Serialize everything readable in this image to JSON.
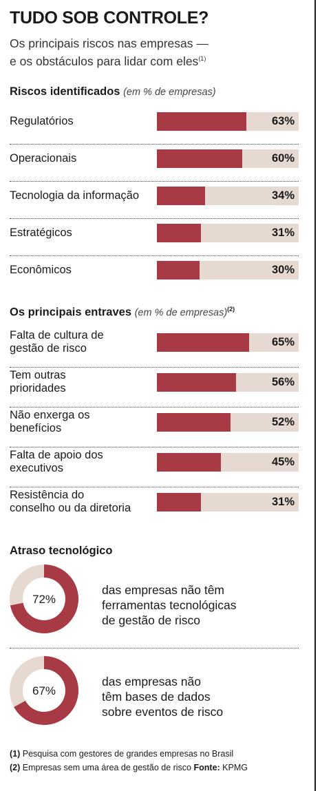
{
  "title": "TUDO SOB CONTROLE?",
  "subtitle_line1": "Os principais riscos nas empresas —",
  "subtitle_line2": "e os obstáculos para lidar com eles",
  "subtitle_sup": "(1)",
  "section1": {
    "title": "Riscos identificados",
    "note": "(em % de empresas)"
  },
  "section2": {
    "title": "Os principais entraves",
    "note": "(em % de empresas)",
    "sup": "(2)"
  },
  "section3": {
    "title": "Atraso tecnológico"
  },
  "chart_data": [
    {
      "type": "bar",
      "title": "Riscos identificados",
      "unit": "% de empresas",
      "categories": [
        "Regulatórios",
        "Operacionais",
        "Tecnologia da informação",
        "Estratégicos",
        "Econômicos"
      ],
      "values": [
        63,
        60,
        34,
        31,
        30
      ],
      "value_labels": [
        "63%",
        "60%",
        "34%",
        "31%",
        "30%"
      ],
      "xlim": [
        0,
        100
      ],
      "orientation": "horizontal"
    },
    {
      "type": "bar",
      "title": "Os principais entraves",
      "unit": "% de empresas",
      "categories": [
        [
          "Falta de cultura de",
          "gestão de risco"
        ],
        [
          "Tem outras",
          "prioridades"
        ],
        [
          "Não enxerga os",
          "benefícios"
        ],
        [
          "Falta de apoio dos",
          "executivos"
        ],
        [
          "Resistência do",
          "conselho ou da diretoria"
        ]
      ],
      "values": [
        65,
        56,
        52,
        45,
        31
      ],
      "value_labels": [
        "65%",
        "56%",
        "52%",
        "45%",
        "31%"
      ],
      "xlim": [
        0,
        100
      ],
      "orientation": "horizontal"
    },
    {
      "type": "pie",
      "title": "Atraso tecnológico",
      "items": [
        {
          "value": 72,
          "label": "72%",
          "text": [
            "das empresas não têm",
            "ferramentas tecnológicas",
            "de gestão de risco"
          ]
        },
        {
          "value": 67,
          "label": "67%",
          "text": [
            "das empresas não",
            "têm bases de dados",
            "sobre eventos de risco"
          ]
        }
      ]
    }
  ],
  "colors": {
    "bar": "#a73a44",
    "track": "#e5d9d2"
  },
  "footnotes": {
    "n1_mark": "(1)",
    "n1_text": " Pesquisa com gestores de grandes empresas no Brasil",
    "n2_mark": "(2)",
    "n2_text": " Empresas sem uma área de gestão de risco ",
    "source_label": "Fonte:",
    "source_text": " KPMG"
  }
}
